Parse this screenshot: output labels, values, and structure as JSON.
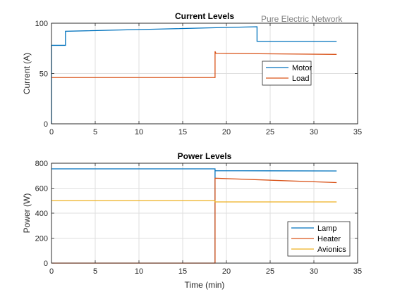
{
  "figure": {
    "annotation": "Pure Electric Network"
  },
  "chart_data": [
    {
      "type": "line",
      "title": "Current Levels",
      "xlabel": "",
      "ylabel": "Current (A)",
      "xlim": [
        0,
        35
      ],
      "ylim": [
        0,
        100
      ],
      "xticks": [
        0,
        5,
        10,
        15,
        20,
        25,
        30,
        35
      ],
      "yticks": [
        0,
        50,
        100
      ],
      "grid": true,
      "legend_position": "right",
      "series": [
        {
          "name": "Motor",
          "color": "#0072BD",
          "points": [
            [
              0,
              0
            ],
            [
              0,
              78
            ],
            [
              1.6,
              78
            ],
            [
              1.6,
              92
            ],
            [
              23.5,
              96.5
            ],
            [
              23.5,
              82
            ],
            [
              32.6,
              82
            ]
          ]
        },
        {
          "name": "Load",
          "color": "#D95319",
          "points": [
            [
              0,
              46
            ],
            [
              18.7,
              46
            ],
            [
              18.7,
              72
            ],
            [
              18.8,
              70
            ],
            [
              32.6,
              69
            ]
          ]
        }
      ]
    },
    {
      "type": "line",
      "title": "Power Levels",
      "xlabel": "Time (min)",
      "ylabel": "Power (W)",
      "xlim": [
        0,
        35
      ],
      "ylim": [
        0,
        800
      ],
      "xticks": [
        0,
        5,
        10,
        15,
        20,
        25,
        30,
        35
      ],
      "yticks": [
        0,
        200,
        400,
        600,
        800
      ],
      "grid": true,
      "legend_position": "bottom-right",
      "series": [
        {
          "name": "Lamp",
          "color": "#0072BD",
          "points": [
            [
              0,
              755
            ],
            [
              18.7,
              755
            ],
            [
              18.7,
              0
            ],
            [
              18.7,
              740
            ],
            [
              32.6,
              738
            ]
          ]
        },
        {
          "name": "Heater",
          "color": "#D95319",
          "points": [
            [
              0,
              0
            ],
            [
              18.7,
              0
            ],
            [
              18.7,
              680
            ],
            [
              32.6,
              645
            ]
          ]
        },
        {
          "name": "Avionics",
          "color": "#EDB120",
          "points": [
            [
              0,
              500
            ],
            [
              18.7,
              500
            ],
            [
              18.7,
              490
            ],
            [
              32.6,
              490
            ]
          ]
        }
      ]
    }
  ]
}
